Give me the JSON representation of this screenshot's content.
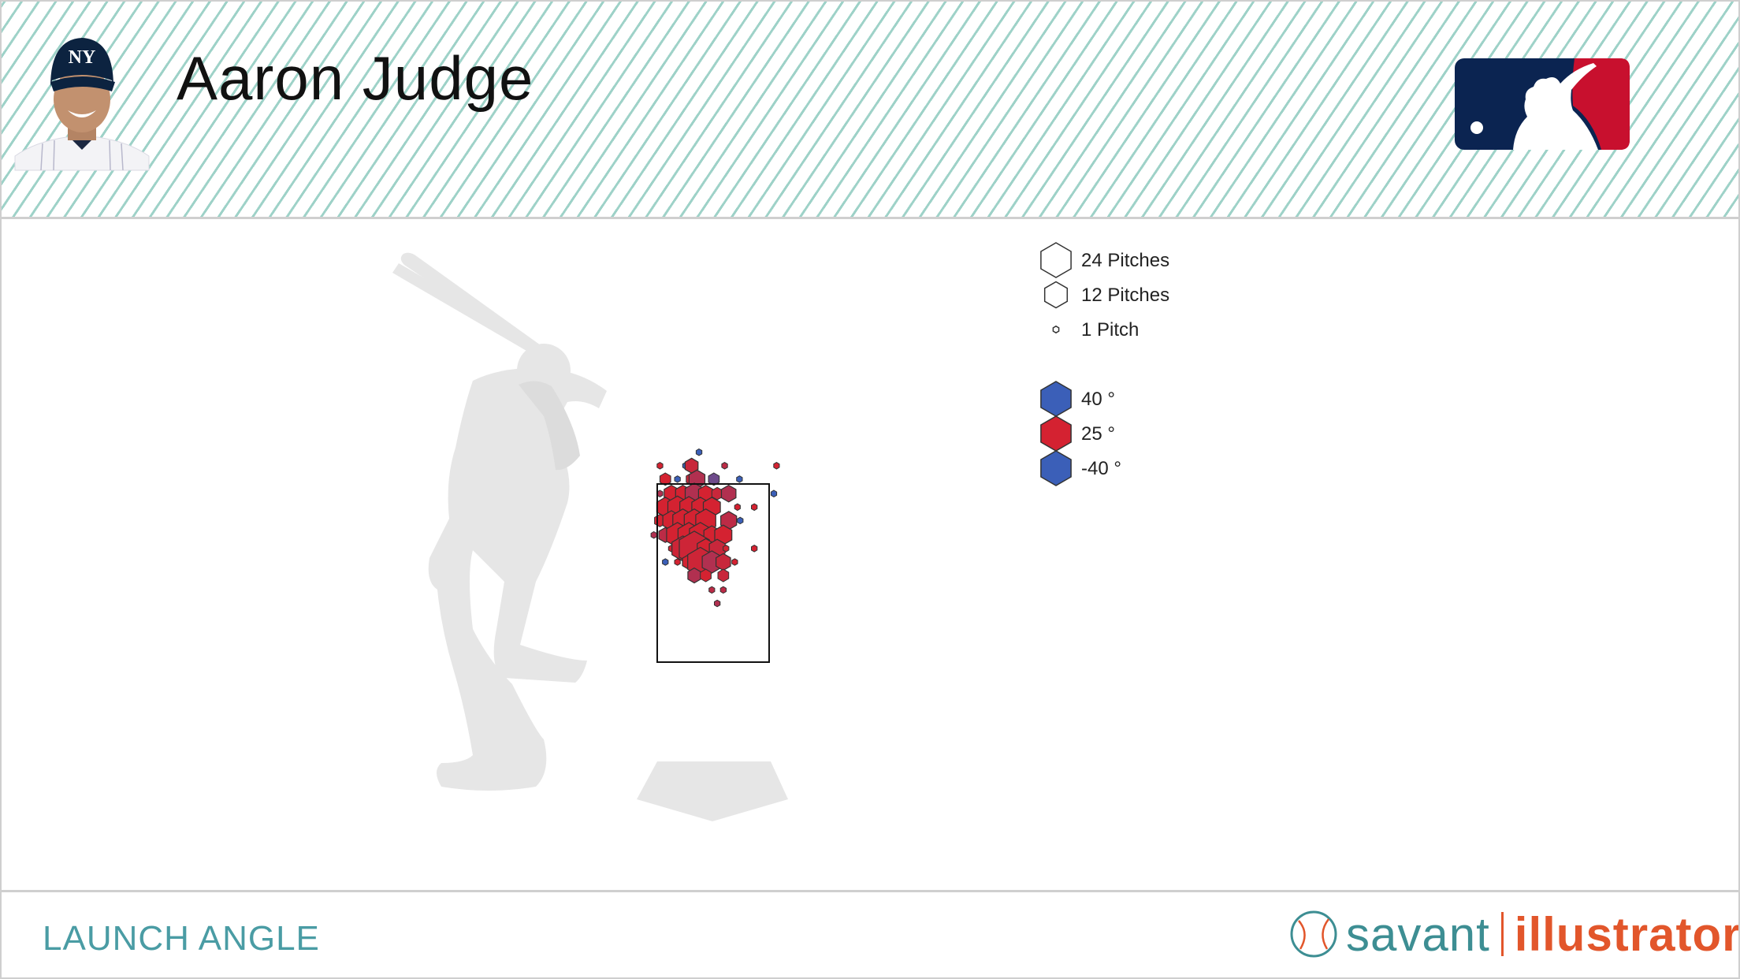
{
  "header": {
    "player_name": "Aaron Judge"
  },
  "footer": {
    "metric_label": "LAUNCH ANGLE",
    "brand_savant": "savant",
    "brand_illustrator": "illustrator"
  },
  "colors": {
    "high": "#3b5fb8",
    "mid": "#d42231",
    "low": "#3b5fb8",
    "silhouette": "#e6e6e6",
    "header_stripe": "#9ed2c8",
    "mlb_blue": "#0b2451",
    "mlb_red": "#c8102e",
    "savant_teal": "#3d8e93",
    "illustrator_orange": "#e2562b"
  },
  "icons": [
    "player-headshot-icon",
    "mlb-logo-icon",
    "batter-silhouette-icon",
    "home-plate-icon",
    "baseball-icon"
  ],
  "chart_data": {
    "type": "hexbin",
    "metric": "launch_angle",
    "x_range_ft": [
      -1.5,
      1.5
    ],
    "z_range_ft": [
      1.2,
      3.9
    ],
    "legend_size": [
      {
        "label": "24 Pitches",
        "count": 24
      },
      {
        "label": "12 Pitches",
        "count": 12
      },
      {
        "label": "1 Pitch",
        "count": 1
      }
    ],
    "legend_color": [
      {
        "label": "40 °",
        "value": 40
      },
      {
        "label": "25 °",
        "value": 25
      },
      {
        "label": "-40 °",
        "value": -40
      }
    ],
    "hex_bins": [
      {
        "x": -0.21,
        "z": 3.78,
        "count": 1,
        "la": 40
      },
      {
        "x": -0.79,
        "z": 3.64,
        "count": 1,
        "la": 25
      },
      {
        "x": -0.41,
        "z": 3.64,
        "count": 1,
        "la": 40
      },
      {
        "x": -0.32,
        "z": 3.64,
        "count": 3,
        "la": 20
      },
      {
        "x": 0.17,
        "z": 3.64,
        "count": 1,
        "la": 15
      },
      {
        "x": 0.94,
        "z": 3.64,
        "count": 1,
        "la": 25
      },
      {
        "x": -0.71,
        "z": 3.5,
        "count": 2,
        "la": 25
      },
      {
        "x": -0.53,
        "z": 3.5,
        "count": 1,
        "la": 40
      },
      {
        "x": -0.32,
        "z": 3.5,
        "count": 2,
        "la": 20
      },
      {
        "x": -0.24,
        "z": 3.5,
        "count": 5,
        "la": 10
      },
      {
        "x": 0.01,
        "z": 3.5,
        "count": 2,
        "la": 35
      },
      {
        "x": 0.39,
        "z": 3.5,
        "count": 1,
        "la": 40
      },
      {
        "x": -0.79,
        "z": 3.35,
        "count": 1,
        "la": 10
      },
      {
        "x": -0.62,
        "z": 3.35,
        "count": 4,
        "la": 25
      },
      {
        "x": -0.45,
        "z": 3.35,
        "count": 4,
        "la": 25
      },
      {
        "x": -0.28,
        "z": 3.35,
        "count": 7,
        "la": 10
      },
      {
        "x": -0.11,
        "z": 3.35,
        "count": 4,
        "la": 25
      },
      {
        "x": 0.06,
        "z": 3.35,
        "count": 2,
        "la": 20
      },
      {
        "x": 0.23,
        "z": 3.35,
        "count": 4,
        "la": 10
      },
      {
        "x": 0.9,
        "z": 3.35,
        "count": 1,
        "la": 40
      },
      {
        "x": 0.36,
        "z": 3.21,
        "count": 1,
        "la": 25
      },
      {
        "x": 0.61,
        "z": 3.21,
        "count": 1,
        "la": 25
      },
      {
        "x": -0.71,
        "z": 3.21,
        "count": 6,
        "la": 25
      },
      {
        "x": -0.53,
        "z": 3.21,
        "count": 8,
        "la": 25
      },
      {
        "x": -0.36,
        "z": 3.21,
        "count": 7,
        "la": 25
      },
      {
        "x": -0.19,
        "z": 3.21,
        "count": 6,
        "la": 25
      },
      {
        "x": -0.02,
        "z": 3.21,
        "count": 6,
        "la": 25
      },
      {
        "x": -0.79,
        "z": 3.07,
        "count": 2,
        "la": 25
      },
      {
        "x": -0.62,
        "z": 3.07,
        "count": 6,
        "la": 25
      },
      {
        "x": -0.45,
        "z": 3.07,
        "count": 9,
        "la": 25
      },
      {
        "x": -0.28,
        "z": 3.07,
        "count": 9,
        "la": 25
      },
      {
        "x": -0.11,
        "z": 3.07,
        "count": 9,
        "la": 25
      },
      {
        "x": 0.23,
        "z": 3.07,
        "count": 5,
        "la": 15
      },
      {
        "x": 0.4,
        "z": 3.07,
        "count": 1,
        "la": 40
      },
      {
        "x": -0.88,
        "z": 2.92,
        "count": 1,
        "la": 10
      },
      {
        "x": -0.71,
        "z": 2.92,
        "count": 3,
        "la": 15
      },
      {
        "x": -0.53,
        "z": 2.92,
        "count": 11,
        "la": 25
      },
      {
        "x": -0.36,
        "z": 2.92,
        "count": 11,
        "la": 25
      },
      {
        "x": -0.19,
        "z": 2.92,
        "count": 11,
        "la": 25
      },
      {
        "x": -0.02,
        "z": 2.92,
        "count": 5,
        "la": 25
      },
      {
        "x": 0.15,
        "z": 2.92,
        "count": 6,
        "la": 25
      },
      {
        "x": -0.62,
        "z": 2.78,
        "count": 1,
        "la": 25
      },
      {
        "x": -0.45,
        "z": 2.78,
        "count": 11,
        "la": 22
      },
      {
        "x": -0.28,
        "z": 2.78,
        "count": 24,
        "la": 22
      },
      {
        "x": -0.11,
        "z": 2.78,
        "count": 6,
        "la": 25
      },
      {
        "x": 0.06,
        "z": 2.78,
        "count": 5,
        "la": 20
      },
      {
        "x": 0.19,
        "z": 2.78,
        "count": 1,
        "la": 25
      },
      {
        "x": 0.61,
        "z": 2.78,
        "count": 1,
        "la": 25
      },
      {
        "x": -0.71,
        "z": 2.64,
        "count": 1,
        "la": 40
      },
      {
        "x": -0.53,
        "z": 2.64,
        "count": 1,
        "la": 25
      },
      {
        "x": -0.36,
        "z": 2.64,
        "count": 3,
        "la": 25
      },
      {
        "x": -0.19,
        "z": 2.64,
        "count": 16,
        "la": 22
      },
      {
        "x": -0.02,
        "z": 2.64,
        "count": 8,
        "la": 10
      },
      {
        "x": 0.15,
        "z": 2.64,
        "count": 4,
        "la": 20
      },
      {
        "x": 0.32,
        "z": 2.64,
        "count": 1,
        "la": 25
      },
      {
        "x": -0.28,
        "z": 2.5,
        "count": 3,
        "la": 10
      },
      {
        "x": -0.11,
        "z": 2.5,
        "count": 2,
        "la": 25
      },
      {
        "x": 0.15,
        "z": 2.5,
        "count": 2,
        "la": 20
      },
      {
        "x": -0.02,
        "z": 2.35,
        "count": 1,
        "la": 15
      },
      {
        "x": 0.15,
        "z": 2.35,
        "count": 1,
        "la": 15
      },
      {
        "x": 0.06,
        "z": 2.21,
        "count": 1,
        "la": 10
      }
    ]
  }
}
